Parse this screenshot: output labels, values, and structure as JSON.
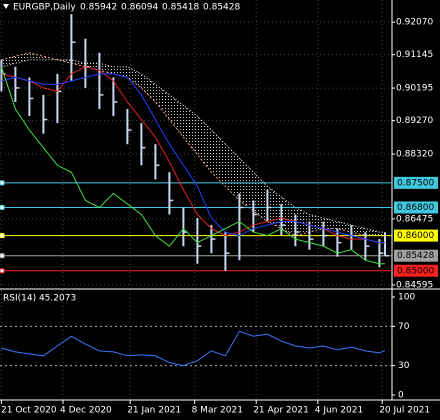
{
  "chart_data": {
    "type": "ohlc",
    "title": "EURGBP,Daily",
    "ohlc_labels": [
      "0.85942",
      "0.86094",
      "0.85418",
      "0.85428"
    ],
    "x": [
      "2020-10-21",
      "2020-10-31",
      "2020-11-10",
      "2020-11-20",
      "2020-11-30",
      "2020-12-10",
      "2020-12-20",
      "2020-12-30",
      "2021-01-09",
      "2021-01-19",
      "2021-01-29",
      "2021-02-08",
      "2021-02-18",
      "2021-02-28",
      "2021-03-10",
      "2021-03-20",
      "2021-03-30",
      "2021-04-09",
      "2021-04-19",
      "2021-04-29",
      "2021-05-09",
      "2021-05-19",
      "2021-05-29",
      "2021-06-08",
      "2021-06-18",
      "2021-06-28",
      "2021-07-08",
      "2021-07-18",
      "2021-07-22"
    ],
    "high": [
      0.91,
      0.908,
      0.905,
      0.9,
      0.906,
      0.923,
      0.916,
      0.912,
      0.905,
      0.896,
      0.892,
      0.886,
      0.878,
      0.868,
      0.865,
      0.863,
      0.861,
      0.872,
      0.87,
      0.873,
      0.869,
      0.866,
      0.864,
      0.864,
      0.862,
      0.863,
      0.861,
      0.859,
      0.86094
    ],
    "low": [
      0.901,
      0.898,
      0.894,
      0.889,
      0.892,
      0.904,
      0.902,
      0.896,
      0.894,
      0.886,
      0.88,
      0.876,
      0.866,
      0.857,
      0.852,
      0.855,
      0.85,
      0.853,
      0.861,
      0.864,
      0.86,
      0.857,
      0.856,
      0.857,
      0.854,
      0.856,
      0.853,
      0.851,
      0.85418
    ],
    "close": [
      0.906,
      0.902,
      0.899,
      0.893,
      0.901,
      0.915,
      0.908,
      0.9,
      0.898,
      0.89,
      0.885,
      0.88,
      0.87,
      0.861,
      0.857,
      0.859,
      0.855,
      0.868,
      0.866,
      0.868,
      0.863,
      0.861,
      0.859,
      0.86,
      0.858,
      0.86,
      0.857,
      0.855,
      0.85428
    ],
    "bar_color": "#c8d8f0",
    "lines": [
      {
        "color": "#e02020",
        "values": [
          0.906,
          0.905,
          0.904,
          0.902,
          0.901,
          0.906,
          0.908,
          0.907,
          0.904,
          0.898,
          0.893,
          0.888,
          0.881,
          0.873,
          0.866,
          0.862,
          0.86,
          0.861,
          0.863,
          0.864,
          0.865,
          0.864,
          0.863,
          0.862,
          0.86,
          0.859,
          0.859,
          0.858,
          0.858
        ]
      },
      {
        "color": "#2040ff",
        "values": [
          0.904,
          0.905,
          0.904,
          0.903,
          0.903,
          0.904,
          0.905,
          0.906,
          0.906,
          0.905,
          0.9,
          0.893,
          0.886,
          0.88,
          0.874,
          0.865,
          0.861,
          0.86,
          0.862,
          0.863,
          0.864,
          0.864,
          0.863,
          0.862,
          0.861,
          0.86,
          0.859,
          0.858,
          0.858
        ]
      },
      {
        "color": "#40e040",
        "values": [
          0.908,
          0.896,
          0.89,
          0.885,
          0.88,
          0.878,
          0.87,
          0.868,
          0.872,
          0.869,
          0.866,
          0.86,
          0.857,
          0.862,
          0.858,
          0.86,
          0.862,
          0.864,
          0.861,
          0.86,
          0.862,
          0.859,
          0.858,
          0.857,
          0.855,
          0.856,
          0.853,
          0.852,
          0.852
        ]
      }
    ],
    "cloud": {
      "color_a": "#f0a080",
      "color_b": "#ffffff",
      "span_a": [
        0.91,
        0.911,
        0.912,
        0.911,
        0.91,
        0.909,
        0.908,
        0.907,
        0.906,
        0.905,
        0.902,
        0.898,
        0.893,
        0.888,
        0.883,
        0.878,
        0.874,
        0.87,
        0.867,
        0.864,
        0.862,
        0.86,
        0.861,
        0.862,
        0.862,
        0.861,
        0.86,
        0.86,
        0.86
      ],
      "span_b": [
        0.908,
        0.909,
        0.91,
        0.91,
        0.91,
        0.91,
        0.909,
        0.909,
        0.908,
        0.908,
        0.906,
        0.903,
        0.9,
        0.897,
        0.894,
        0.89,
        0.886,
        0.882,
        0.878,
        0.874,
        0.871,
        0.868,
        0.866,
        0.865,
        0.864,
        0.863,
        0.862,
        0.861,
        0.861
      ]
    },
    "hlines": [
      {
        "value": 0.875,
        "label": "0.87500",
        "color": "#40c8e0"
      },
      {
        "value": 0.868,
        "label": "0.86800",
        "color": "#40c8e0"
      },
      {
        "value": 0.86,
        "label": "0.86000",
        "color": "#ffff00"
      },
      {
        "value": 0.85428,
        "label": "0.85428",
        "color": "#a0a0a0"
      },
      {
        "value": 0.85,
        "label": "0.85000",
        "color": "#ff2020"
      }
    ],
    "ylim": [
      0.8451,
      0.927
    ],
    "yticks": [
      {
        "value": 0.9207,
        "label": "0.92070"
      },
      {
        "value": 0.91145,
        "label": "0.91145"
      },
      {
        "value": 0.90195,
        "label": "0.90195"
      },
      {
        "value": 0.8927,
        "label": "0.89270"
      },
      {
        "value": 0.8832,
        "label": "0.88320"
      },
      {
        "value": 0.86475,
        "label": "0.86475"
      },
      {
        "value": 0.84595,
        "label": "0.84595"
      }
    ],
    "xlim": [
      "2020-10-20",
      "2021-07-27"
    ],
    "xticks": [
      {
        "value": "2020-10-21",
        "label": "21 Oct 2020"
      },
      {
        "value": "2020-12-04",
        "label": "4 Dec 2020"
      },
      {
        "value": "2021-01-21",
        "label": "21 Jan 2021"
      },
      {
        "value": "2021-03-08",
        "label": "8 Mar 2021"
      },
      {
        "value": "2021-04-21",
        "label": "21 Apr 2021"
      },
      {
        "value": "2021-06-04",
        "label": "4 Jun 2021"
      },
      {
        "value": "2021-07-20",
        "label": "20 Jul 2021"
      }
    ],
    "grid": true,
    "rsi": {
      "title": "RSI(14) 45.2073",
      "color": "#3c78ff",
      "values": [
        48,
        44,
        42,
        40,
        50,
        60,
        52,
        45,
        44,
        40,
        41,
        40,
        33,
        30,
        35,
        45,
        40,
        65,
        60,
        62,
        55,
        50,
        48,
        50,
        46,
        49,
        45,
        43,
        45.2073
      ],
      "ylim": [
        0,
        100
      ],
      "yticks": [
        100,
        70,
        30,
        0
      ],
      "levels": [
        70,
        30
      ]
    }
  }
}
